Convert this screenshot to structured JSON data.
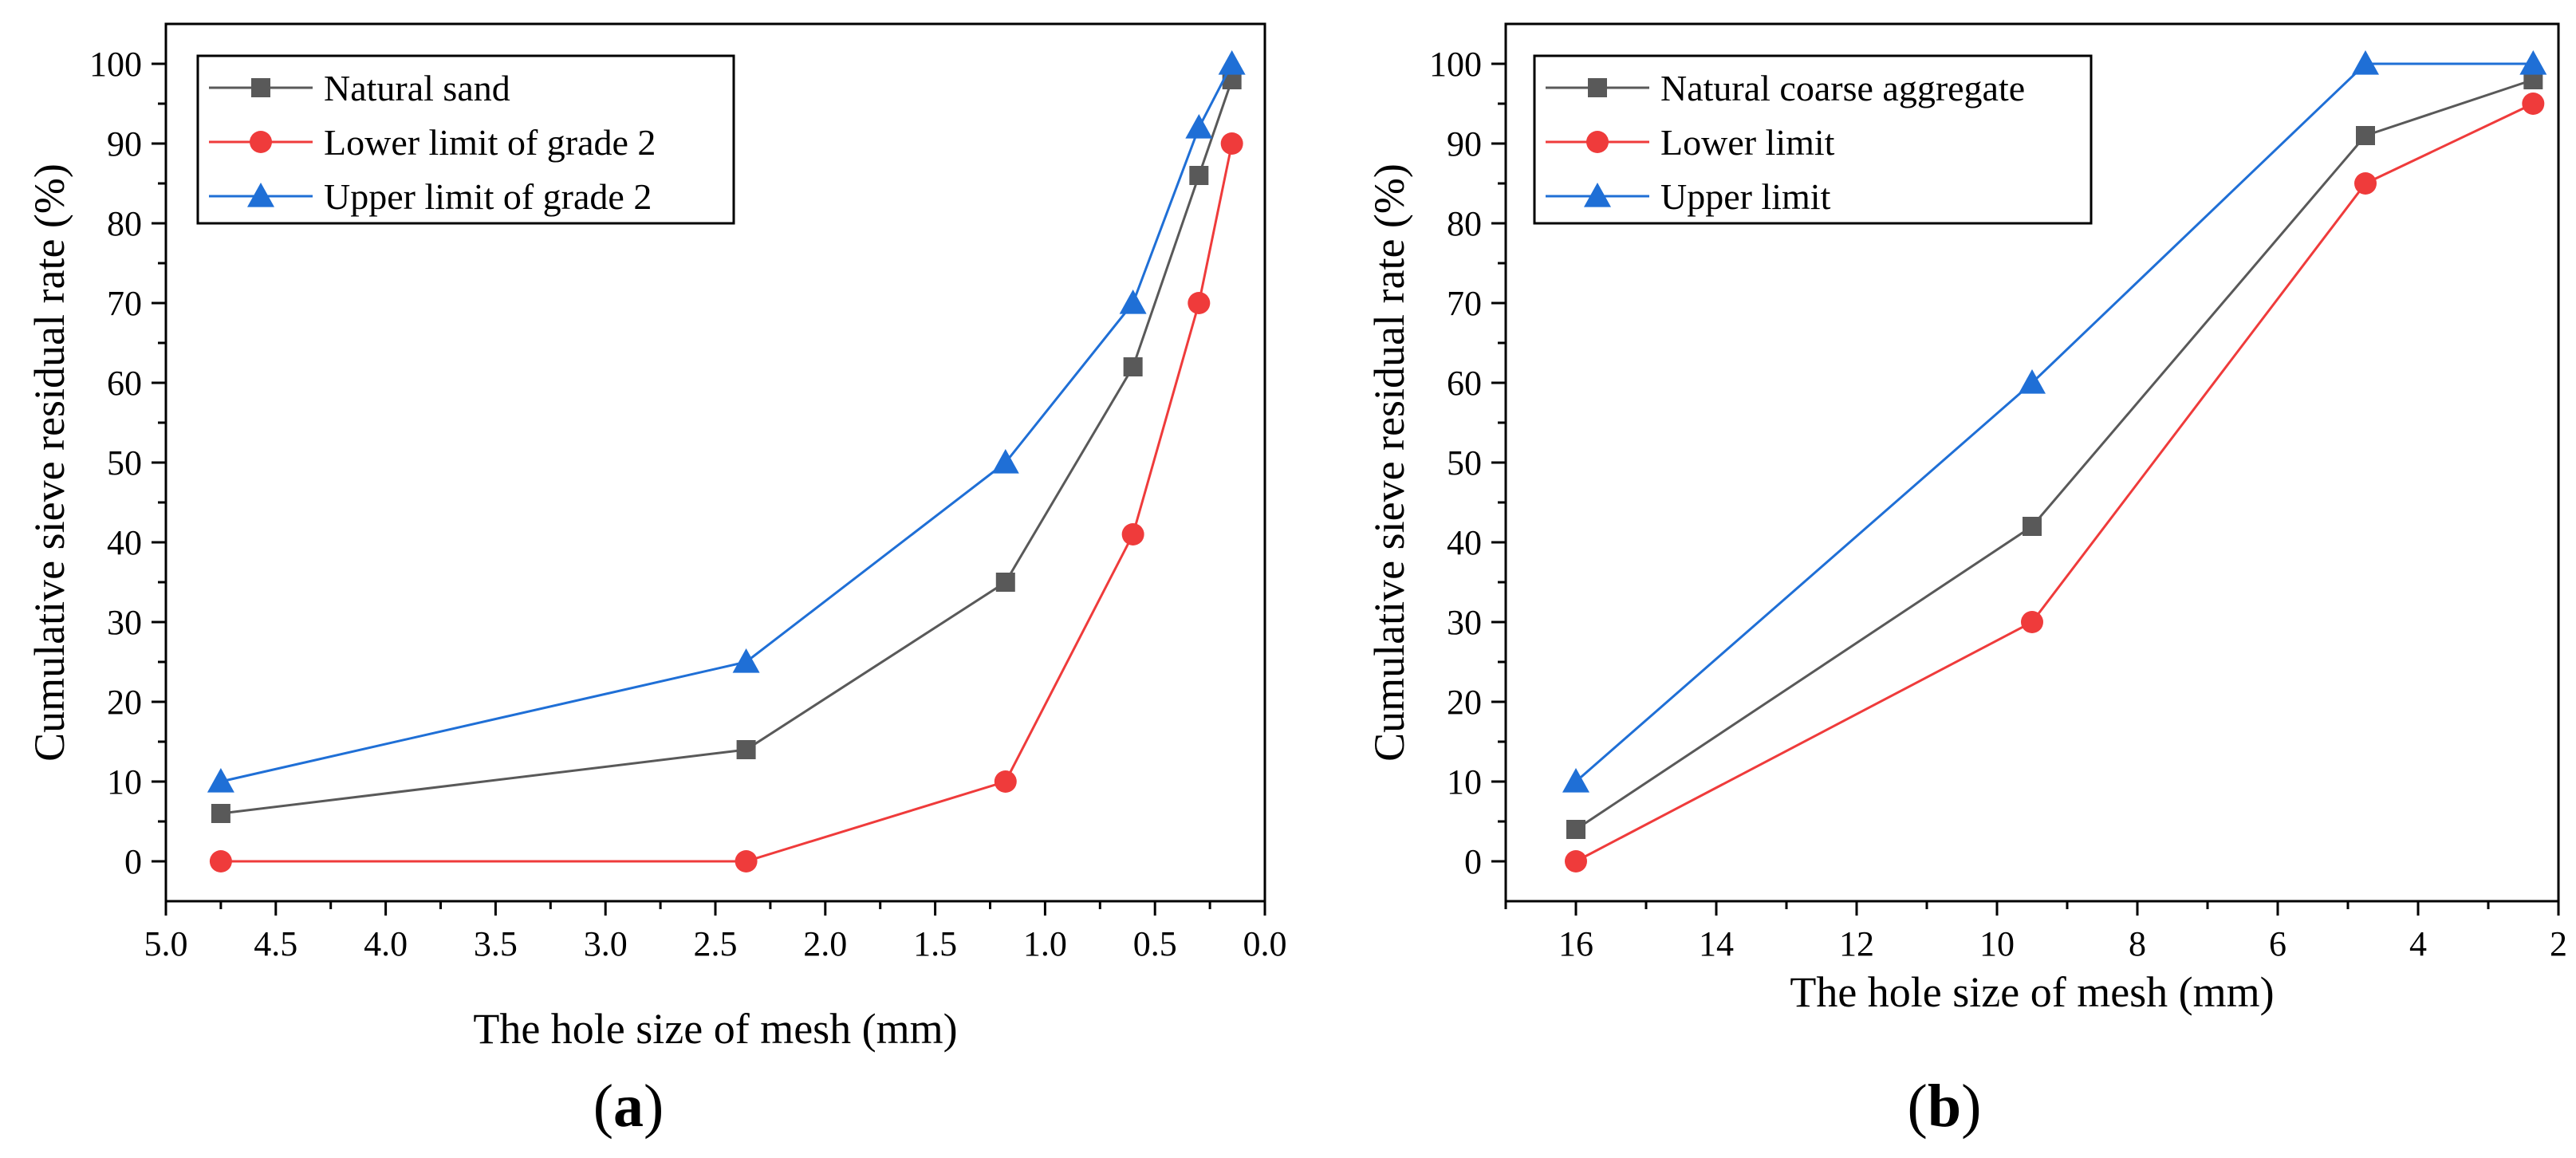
{
  "chart_data": [
    {
      "type": "line",
      "panel_label": "a",
      "xlabel": "The hole size of mesh (mm)",
      "ylabel": "Cumulative sieve residual rate (%)",
      "xlim": [
        5.0,
        0.0
      ],
      "ylim": [
        -5,
        105
      ],
      "x_reversed": true,
      "x_ticks": [
        5.0,
        4.5,
        4.0,
        3.5,
        3.0,
        2.5,
        2.0,
        1.5,
        1.0,
        0.5,
        0.0
      ],
      "x_tick_labels": [
        "5.0",
        "4.5",
        "4.0",
        "3.5",
        "3.0",
        "2.5",
        "2.0",
        "1.5",
        "1.0",
        "0.5",
        "0.0"
      ],
      "y_ticks": [
        0,
        10,
        20,
        30,
        40,
        50,
        60,
        70,
        80,
        90,
        100
      ],
      "y_tick_labels": [
        "0",
        "10",
        "20",
        "30",
        "40",
        "50",
        "60",
        "70",
        "80",
        "90",
        "100"
      ],
      "grid": false,
      "legend_position": "top-left",
      "x": [
        4.75,
        2.36,
        1.18,
        0.6,
        0.3,
        0.15
      ],
      "series": [
        {
          "name": "Natural sand",
          "color": "#595959",
          "marker": "square",
          "values": [
            6,
            14,
            35,
            62,
            86,
            98
          ]
        },
        {
          "name": "Lower limit of grade 2",
          "color": "#ef3b3b",
          "marker": "circle",
          "values": [
            0,
            0,
            10,
            41,
            70,
            90
          ]
        },
        {
          "name": "Upper limit of grade 2",
          "color": "#1f6fd6",
          "marker": "triangle",
          "values": [
            10,
            25,
            50,
            70,
            92,
            100
          ]
        }
      ]
    },
    {
      "type": "line",
      "panel_label": "b",
      "xlabel": "The hole size of mesh (mm)",
      "ylabel": "Cumulative sieve residual rate (%)",
      "xlim": [
        17,
        2
      ],
      "ylim": [
        -5,
        105
      ],
      "x_reversed": true,
      "x_ticks": [
        16,
        14,
        12,
        10,
        8,
        6,
        4,
        2
      ],
      "x_tick_labels": [
        "16",
        "14",
        "12",
        "10",
        "8",
        "6",
        "4",
        "2"
      ],
      "y_ticks": [
        0,
        10,
        20,
        30,
        40,
        50,
        60,
        70,
        80,
        90,
        100
      ],
      "y_tick_labels": [
        "0",
        "10",
        "20",
        "30",
        "40",
        "50",
        "60",
        "70",
        "80",
        "90",
        "100"
      ],
      "grid": false,
      "legend_position": "top-left",
      "x": [
        16,
        9.5,
        4.75,
        2.36
      ],
      "series": [
        {
          "name": "Natural coarse aggregate",
          "color": "#595959",
          "marker": "square",
          "values": [
            4,
            42,
            91,
            98
          ]
        },
        {
          "name": "Lower limit",
          "color": "#ef3b3b",
          "marker": "circle",
          "values": [
            0,
            30,
            85,
            95
          ]
        },
        {
          "name": "Upper limit",
          "color": "#1f6fd6",
          "marker": "triangle",
          "values": [
            10,
            60,
            100,
            100
          ]
        }
      ]
    }
  ]
}
